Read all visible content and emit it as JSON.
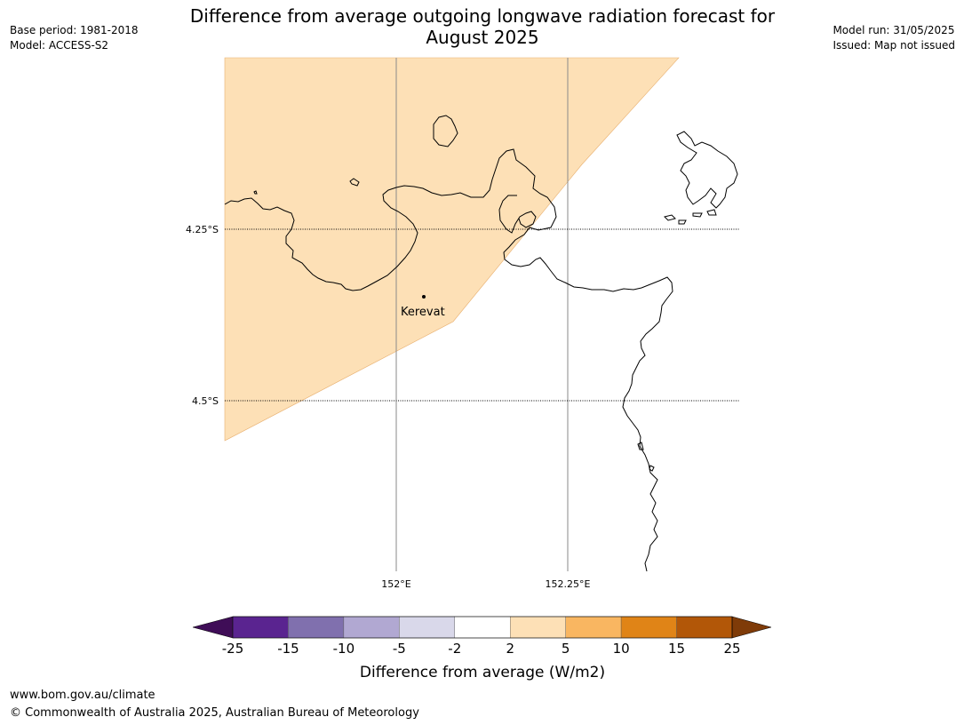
{
  "title_line1": "Difference from average outgoing longwave radiation forecast for",
  "title_line2": "August 2025",
  "base_period": "Base period: 1981-2018",
  "model": "Model: ACCESS-S2",
  "model_run": "Model run: 31/05/2025",
  "issued": "Issued: Map not issued",
  "lat_labels": [
    "4.25°S",
    "4.5°S"
  ],
  "lon_labels": [
    "152°E",
    "152.25°E"
  ],
  "place": {
    "name": "Kerevat"
  },
  "legend": {
    "label": "Difference from average (W/m2)",
    "ticks": [
      "-25",
      "-15",
      "-10",
      "-5",
      "-2",
      "2",
      "5",
      "10",
      "15",
      "25"
    ],
    "colors": [
      "#3f0d57",
      "#5a2490",
      "#8070ae",
      "#b1a8d2",
      "#d9d8ea",
      "#ffffff",
      "#fde0b6",
      "#f9b661",
      "#e08417",
      "#b25708",
      "#7f3b08"
    ],
    "forecast_fill_color": "#fde0b6",
    "forecast_fill_range": "2 to 5"
  },
  "footer_url": "www.bom.gov.au/climate",
  "footer_copyright": "© Commonwealth of Australia 2025, Australian Bureau of Meteorology"
}
